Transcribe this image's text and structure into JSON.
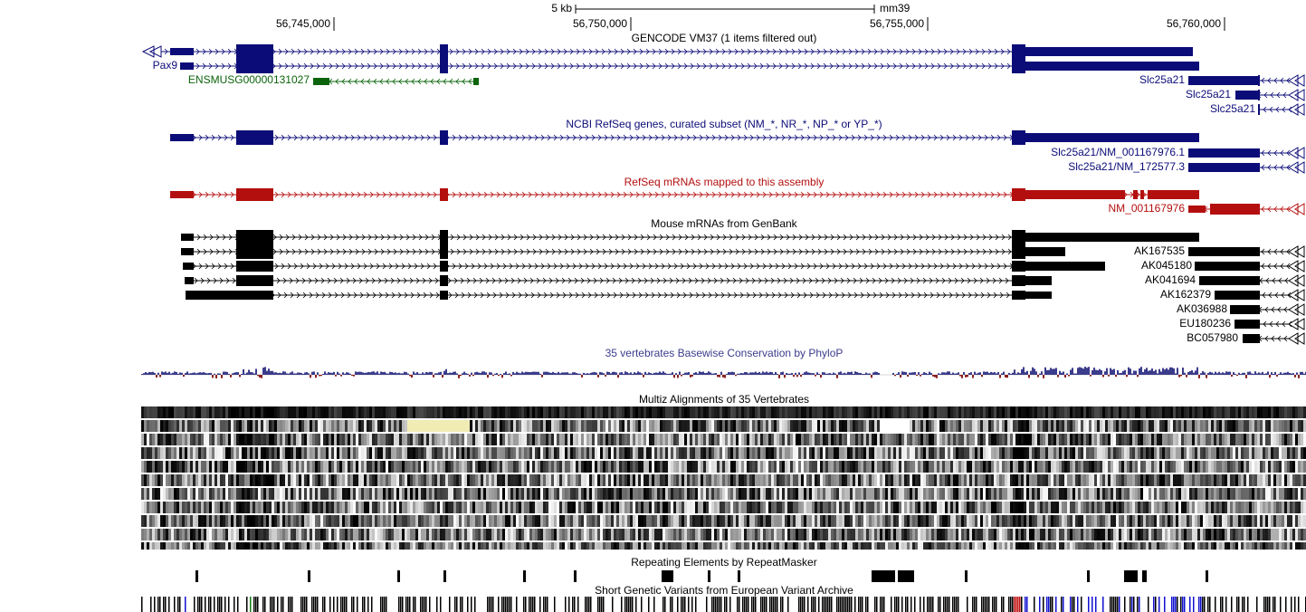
{
  "ruler": {
    "scale_label": "5 kb",
    "assembly": "mm39",
    "positions": [
      "56,745,000",
      "56,750,000",
      "56,755,000",
      "56,760,000"
    ]
  },
  "tracks": [
    {
      "title": "GENCODE VM37 (1 items filtered out)",
      "labels": [
        "Pax9",
        "ENSMUSG00000131027",
        "Slc25a21",
        "Slc25a21",
        "Slc25a21"
      ]
    },
    {
      "title": "NCBI RefSeq genes, curated subset (NM_*, NR_*, NP_* or YP_*)",
      "labels": [
        "Slc25a21/NM_001167976.1",
        "Slc25a21/NM_172577.3"
      ]
    },
    {
      "title": "RefSeq mRNAs mapped to this assembly",
      "labels": [
        "NM_001167976"
      ]
    },
    {
      "title": "Mouse mRNAs from GenBank",
      "labels": [
        "AK167535",
        "AK045180",
        "AK041694",
        "AK162379",
        "AK036988",
        "EU180236",
        "BC057980"
      ]
    },
    {
      "title": "35 vertebrates Basewise Conservation by PhyloP"
    },
    {
      "title": "Multiz Alignments of 35 Vertebrates"
    },
    {
      "title": "Repeating Elements by RepeatMasker"
    },
    {
      "title": "Short Genetic Variants from European Variant Archive"
    }
  ]
}
